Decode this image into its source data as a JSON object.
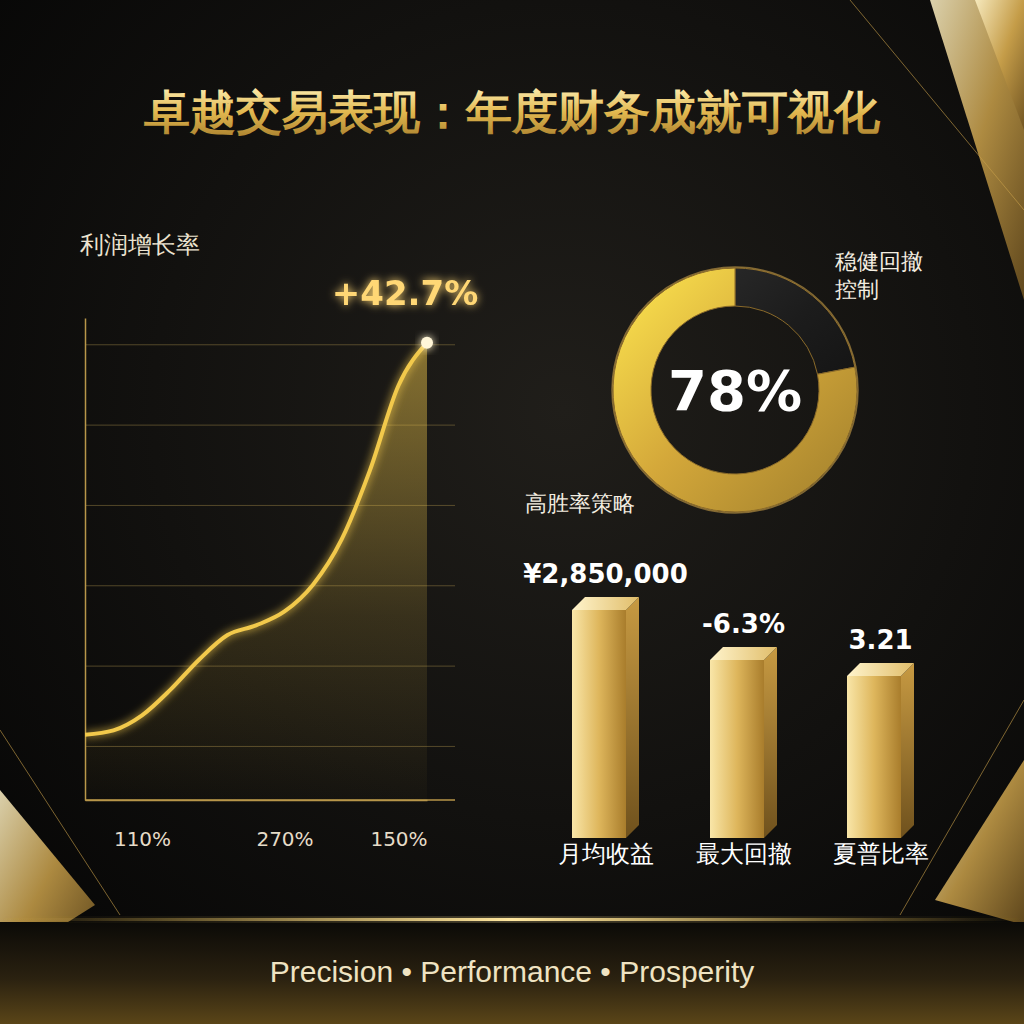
{
  "title": "卓越交易表现：年度财务成就可视化",
  "chart_data": [
    {
      "type": "line",
      "title": "利润增长率",
      "categories": [
        null,
        null,
        "110%",
        null,
        null,
        null,
        null,
        "270%",
        null,
        null,
        null,
        "150%",
        null
      ],
      "values": [
        6.1,
        6.5,
        7.9,
        10.3,
        13.1,
        15.4,
        16.3,
        17.6,
        20.1,
        24.3,
        30.8,
        38.7,
        42.7
      ],
      "annotation": "+42.7%",
      "color": "#f2c94c",
      "ylim": [
        0,
        45
      ],
      "yticks": [
        5,
        12.5,
        20,
        27.5,
        35,
        42.5
      ],
      "grid": true,
      "tick_labels": "x"
    },
    {
      "type": "pie",
      "categories": [
        "稳健回撤控制",
        "高胜率策略"
      ],
      "values": [
        22,
        78
      ],
      "colors": [
        "#1c1c1c",
        "#d4a83a"
      ],
      "value_labels": [
        null,
        "78%"
      ]
    }
  ],
  "metrics": [
    {
      "label": "月均收益",
      "value": "¥2,850,000"
    },
    {
      "label": "最大回撤",
      "value": "-6.3%"
    },
    {
      "label": "夏普比率",
      "value": "3.21"
    }
  ],
  "footer": "Precision • Performance • Prosperity"
}
